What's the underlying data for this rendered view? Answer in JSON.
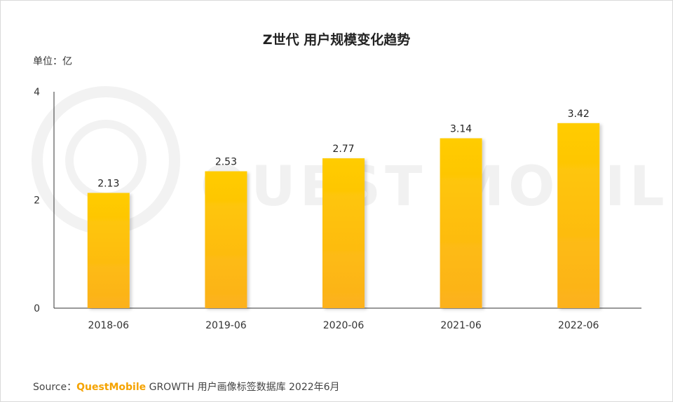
{
  "title": "Z世代 用户规模变化趋势",
  "unit_label": "单位：亿",
  "source": {
    "prefix": "Source：",
    "brand": "QuestMobile",
    "rest": " GROWTH 用户画像标签数据库 2022年6月"
  },
  "watermark": "QUEST MOBILE",
  "colors": {
    "bar_top": "#ffcc00",
    "bar_bottom": "#fcb11c",
    "axis": "#333333",
    "brand": "#f5a300"
  },
  "chart_data": {
    "type": "bar",
    "title": "Z世代 用户规模变化趋势",
    "ylabel": "单位：亿",
    "categories": [
      "2018-06",
      "2019-06",
      "2020-06",
      "2021-06",
      "2022-06"
    ],
    "values": [
      2.13,
      2.53,
      2.77,
      3.14,
      3.42
    ],
    "value_labels": [
      "2.13",
      "2.53",
      "2.77",
      "3.14",
      "3.42"
    ],
    "ylim": [
      0,
      4
    ],
    "yticks": [
      "0",
      "2",
      "4"
    ],
    "grid": false,
    "legend": "none"
  }
}
